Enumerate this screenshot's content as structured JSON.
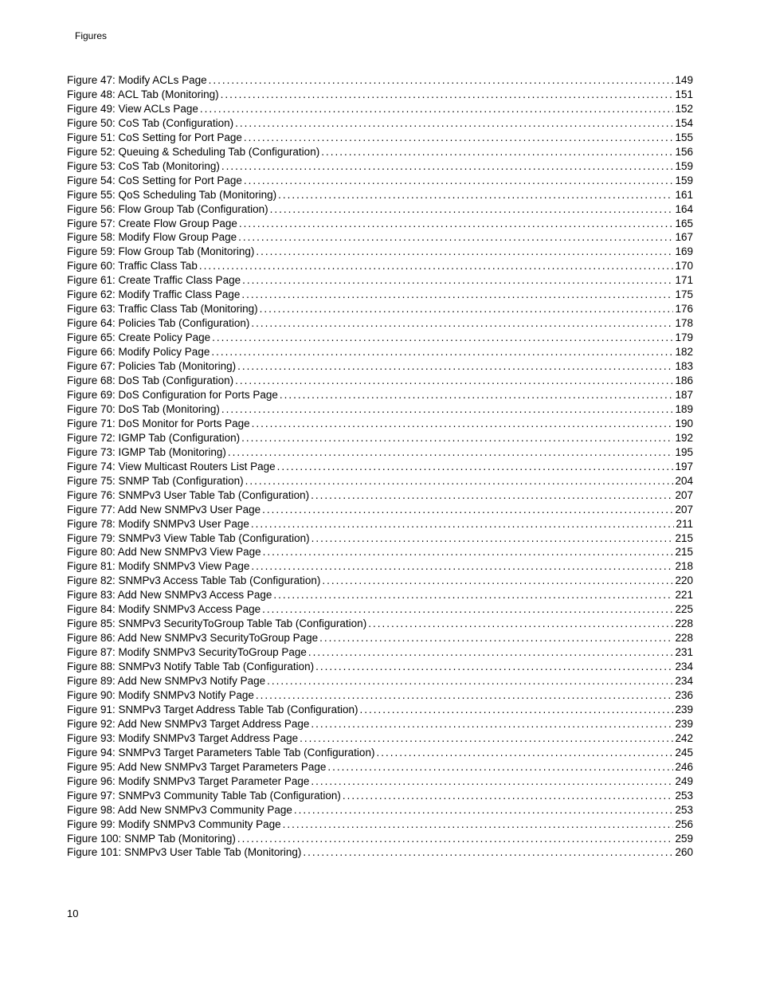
{
  "header": "Figures",
  "pageNumber": "10",
  "entries": [
    {
      "label": "Figure 47: Modify ACLs Page ",
      "page": "149"
    },
    {
      "label": "Figure 48: ACL Tab (Monitoring) ",
      "page": "151"
    },
    {
      "label": "Figure 49: View ACLs Page ",
      "page": "152"
    },
    {
      "label": "Figure 50: CoS Tab (Configuration) ",
      "page": "154"
    },
    {
      "label": "Figure 51: CoS Setting for Port Page ",
      "page": "155"
    },
    {
      "label": "Figure 52: Queuing & Scheduling Tab (Configuration) ",
      "page": "156"
    },
    {
      "label": "Figure 53: CoS Tab (Monitoring) ",
      "page": "159"
    },
    {
      "label": "Figure 54: CoS Setting for Port Page ",
      "page": "159"
    },
    {
      "label": "Figure 55: QoS Scheduling Tab (Monitoring) ",
      "page": "161"
    },
    {
      "label": "Figure 56: Flow Group Tab (Configuration) ",
      "page": "164"
    },
    {
      "label": "Figure 57: Create Flow Group Page ",
      "page": "165"
    },
    {
      "label": "Figure 58: Modify Flow Group Page ",
      "page": "167"
    },
    {
      "label": "Figure 59: Flow Group Tab (Monitoring)",
      "page": "169"
    },
    {
      "label": "Figure 60: Traffic Class Tab",
      "page": "170"
    },
    {
      "label": "Figure 61: Create Traffic Class Page",
      "page": "171"
    },
    {
      "label": "Figure 62: Modify Traffic Class Page",
      "page": "175"
    },
    {
      "label": "Figure 63: Traffic Class Tab (Monitoring)",
      "page": "176"
    },
    {
      "label": "Figure 64: Policies Tab (Configuration) ",
      "page": "178"
    },
    {
      "label": "Figure 65: Create Policy Page ",
      "page": "179"
    },
    {
      "label": "Figure 66: Modify Policy Page ",
      "page": "182"
    },
    {
      "label": "Figure 67: Policies Tab (Monitoring) ",
      "page": "183"
    },
    {
      "label": "Figure 68: DoS Tab (Configuration) ",
      "page": "186"
    },
    {
      "label": "Figure 69: DoS Configuration for Ports Page ",
      "page": "187"
    },
    {
      "label": "Figure 70: DoS Tab (Monitoring) ",
      "page": "189"
    },
    {
      "label": "Figure 71: DoS Monitor for Ports Page ",
      "page": "190"
    },
    {
      "label": "Figure 72: IGMP Tab (Configuration)",
      "page": "192"
    },
    {
      "label": "Figure 73: IGMP Tab (Monitoring) ",
      "page": "195"
    },
    {
      "label": "Figure 74: View Multicast Routers List Page ",
      "page": "197"
    },
    {
      "label": "Figure 75: SNMP Tab (Configuration) ",
      "page": "204"
    },
    {
      "label": "Figure 76: SNMPv3 User Table Tab (Configuration) ",
      "page": "207"
    },
    {
      "label": "Figure 77: Add New SNMPv3 User Page ",
      "page": "207"
    },
    {
      "label": "Figure 78: Modify SNMPv3 User Page ",
      "page": "211"
    },
    {
      "label": "Figure 79: SNMPv3 View Table Tab (Configuration) ",
      "page": "215"
    },
    {
      "label": "Figure 80: Add New SNMPv3 View Page ",
      "page": "215"
    },
    {
      "label": "Figure 81: Modify SNMPv3 View Page ",
      "page": "218"
    },
    {
      "label": "Figure 82: SNMPv3 Access Table Tab (Configuration) ",
      "page": "220"
    },
    {
      "label": "Figure 83: Add New SNMPv3 Access Page ",
      "page": "221"
    },
    {
      "label": "Figure 84: Modify SNMPv3 Access Page ",
      "page": "225"
    },
    {
      "label": "Figure 85: SNMPv3 SecurityToGroup Table Tab (Configuration)",
      "page": "228"
    },
    {
      "label": "Figure 86: Add New SNMPv3 SecurityToGroup Page",
      "page": "228"
    },
    {
      "label": "Figure 87: Modify SNMPv3 SecurityToGroup Page",
      "page": "231"
    },
    {
      "label": "Figure 88: SNMPv3 Notify Table Tab (Configuration)",
      "page": "234"
    },
    {
      "label": "Figure 89: Add New SNMPv3 Notify Page ",
      "page": "234"
    },
    {
      "label": "Figure 90: Modify SNMPv3 Notify Page ",
      "page": "236"
    },
    {
      "label": "Figure 91: SNMPv3 Target Address Table Tab (Configuration) ",
      "page": "239"
    },
    {
      "label": "Figure 92: Add New SNMPv3 Target Address Page ",
      "page": "239"
    },
    {
      "label": "Figure 93: Modify SNMPv3 Target Address Page ",
      "page": "242"
    },
    {
      "label": "Figure 94: SNMPv3 Target Parameters Table Tab (Configuration)",
      "page": "245"
    },
    {
      "label": "Figure 95: Add New SNMPv3 Target Parameters Page",
      "page": "246"
    },
    {
      "label": "Figure 96: Modify SNMPv3 Target Parameter Page",
      "page": "249"
    },
    {
      "label": "Figure 97: SNMPv3 Community Table Tab (Configuration)",
      "page": "253"
    },
    {
      "label": "Figure 98: Add New SNMPv3 Community Page",
      "page": "253"
    },
    {
      "label": "Figure 99: Modify SNMPv3 Community Page",
      "page": "256"
    },
    {
      "label": "Figure 100: SNMP Tab (Monitoring) ",
      "page": "259"
    },
    {
      "label": "Figure 101: SNMPv3 User Table Tab (Monitoring)",
      "page": "260"
    }
  ]
}
